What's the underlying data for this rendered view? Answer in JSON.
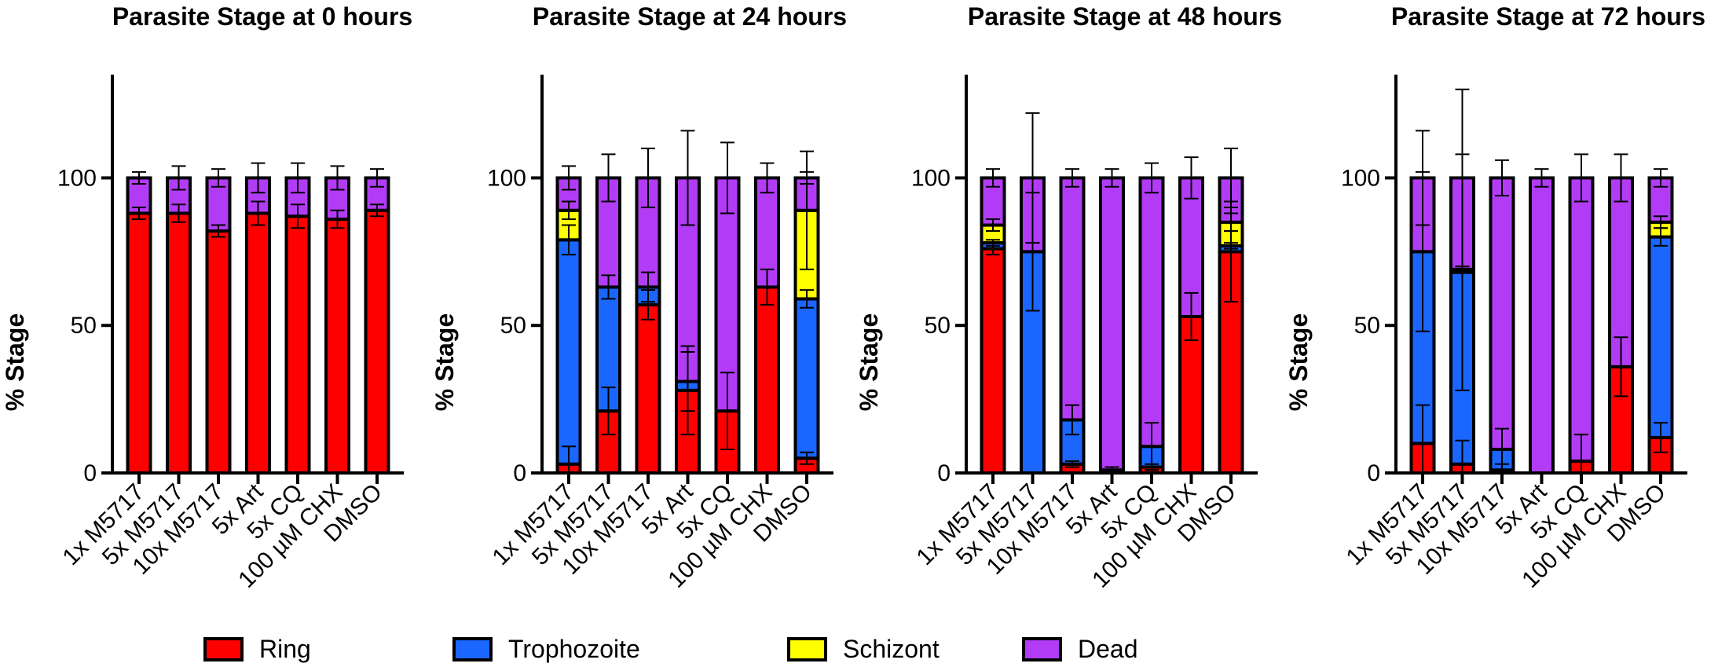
{
  "stage_names": [
    "Ring",
    "Trophozoite",
    "Schizont",
    "Dead"
  ],
  "legend": {
    "items": [
      {
        "label": "Ring",
        "color": "#ff0000"
      },
      {
        "label": "Trophozoite",
        "color": "#1a66ff"
      },
      {
        "label": "Schizont",
        "color": "#ffff00"
      },
      {
        "label": "Dead",
        "color": "#b23cf5"
      }
    ]
  },
  "chart_data": [
    {
      "type": "bar",
      "stacked": true,
      "title": "Parasite Stage at 0 hours",
      "xlabel": "",
      "ylabel": "% Stage",
      "ylim": [
        0,
        135
      ],
      "yticks": [
        0,
        50,
        100
      ],
      "categories": [
        "1x M5717",
        "5x M5717",
        "10x M5717",
        "5x Art",
        "5x CQ",
        "100 µM CHX",
        "DMSO"
      ],
      "series": [
        {
          "name": "Ring",
          "values": [
            88,
            88,
            82,
            88,
            87,
            86,
            89
          ],
          "errors": [
            2,
            3,
            2,
            4,
            4,
            3,
            2
          ]
        },
        {
          "name": "Trophozoite",
          "values": [
            0,
            0,
            0,
            0,
            0,
            0,
            0
          ],
          "errors": [
            0,
            0,
            0,
            0,
            0,
            0,
            0
          ]
        },
        {
          "name": "Schizont",
          "values": [
            0,
            0,
            0,
            0,
            0,
            0,
            0
          ],
          "errors": [
            0,
            0,
            0,
            0,
            0,
            0,
            0
          ]
        },
        {
          "name": "Dead",
          "values": [
            12,
            12,
            18,
            12,
            13,
            14,
            11
          ],
          "errors": [
            2,
            4,
            3,
            5,
            5,
            4,
            3
          ]
        }
      ]
    },
    {
      "type": "bar",
      "stacked": true,
      "title": "Parasite Stage at 24 hours",
      "xlabel": "",
      "ylabel": "% Stage",
      "ylim": [
        0,
        135
      ],
      "yticks": [
        0,
        50,
        100
      ],
      "categories": [
        "1x M5717",
        "5x M5717",
        "10x M5717",
        "5x Art",
        "5x CQ",
        "100 µM CHX",
        "DMSO"
      ],
      "series": [
        {
          "name": "Ring",
          "values": [
            3,
            21,
            57,
            28,
            21,
            63,
            5
          ],
          "errors": [
            6,
            8,
            5,
            15,
            13,
            6,
            2
          ]
        },
        {
          "name": "Trophozoite",
          "values": [
            76,
            42,
            6,
            3,
            0,
            0,
            54
          ],
          "errors": [
            5,
            4,
            5,
            10,
            0,
            0,
            3
          ]
        },
        {
          "name": "Schizont",
          "values": [
            10,
            0,
            0,
            0,
            0,
            0,
            30
          ],
          "errors": [
            3,
            0,
            0,
            0,
            0,
            0,
            20
          ]
        },
        {
          "name": "Dead",
          "values": [
            11,
            37,
            37,
            69,
            79,
            37,
            11
          ],
          "errors": [
            4,
            8,
            10,
            16,
            12,
            5,
            2
          ]
        }
      ]
    },
    {
      "type": "bar",
      "stacked": true,
      "title": "Parasite Stage at 48 hours",
      "xlabel": "",
      "ylabel": "% Stage",
      "ylim": [
        0,
        135
      ],
      "yticks": [
        0,
        50,
        100
      ],
      "categories": [
        "1x M5717",
        "5x M5717",
        "10x M5717",
        "5x Art",
        "5x CQ",
        "100 µM CHX",
        "DMSO"
      ],
      "series": [
        {
          "name": "Ring",
          "values": [
            76,
            0,
            3,
            1,
            2,
            53,
            75
          ],
          "errors": [
            2,
            0,
            1,
            1,
            1,
            8,
            17
          ]
        },
        {
          "name": "Trophozoite",
          "values": [
            2,
            75,
            15,
            0,
            7,
            0,
            2
          ],
          "errors": [
            1,
            20,
            5,
            3,
            8,
            0,
            1
          ]
        },
        {
          "name": "Schizont",
          "values": [
            6,
            0,
            0,
            0,
            0,
            0,
            8
          ],
          "errors": [
            2,
            0,
            0,
            0,
            0,
            0,
            3
          ]
        },
        {
          "name": "Dead",
          "values": [
            16,
            25,
            82,
            99,
            91,
            47,
            15
          ],
          "errors": [
            3,
            22,
            3,
            3,
            5,
            7,
            10
          ]
        }
      ]
    },
    {
      "type": "bar",
      "stacked": true,
      "title": "Parasite Stage at 72 hours",
      "xlabel": "",
      "ylabel": "% Stage",
      "ylim": [
        0,
        135
      ],
      "yticks": [
        0,
        50,
        100
      ],
      "categories": [
        "1x M5717",
        "5x M5717",
        "10x M5717",
        "5x Art",
        "5x CQ",
        "100 µM CHX",
        "DMSO"
      ],
      "series": [
        {
          "name": "Ring",
          "values": [
            10,
            3,
            1,
            0,
            4,
            36,
            12
          ],
          "errors": [
            13,
            8,
            2,
            1,
            9,
            10,
            5
          ]
        },
        {
          "name": "Trophozoite",
          "values": [
            65,
            65,
            7,
            0,
            0,
            0,
            68
          ],
          "errors": [
            27,
            40,
            7,
            5,
            0,
            0,
            3
          ]
        },
        {
          "name": "Schizont",
          "values": [
            0,
            1,
            0,
            0,
            0,
            0,
            5
          ],
          "errors": [
            0,
            1,
            0,
            0,
            0,
            0,
            2
          ]
        },
        {
          "name": "Dead",
          "values": [
            25,
            31,
            92,
            100,
            96,
            64,
            15
          ],
          "errors": [
            16,
            30,
            6,
            3,
            8,
            8,
            3
          ]
        }
      ]
    }
  ]
}
